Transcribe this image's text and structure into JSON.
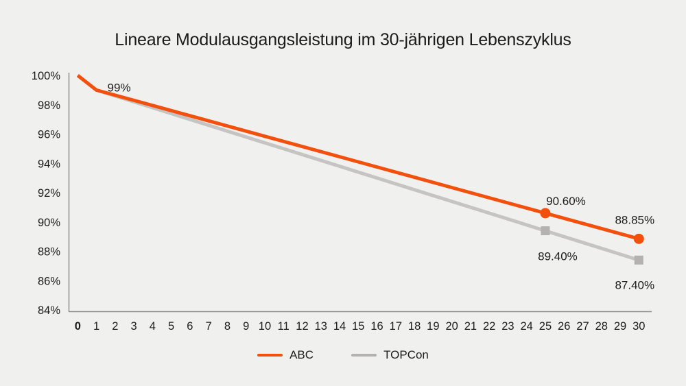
{
  "page": {
    "background": "#f0f0ee",
    "text_color": "#1c1c1c",
    "axis_color": "#8e8e8c"
  },
  "chart_data": {
    "type": "line",
    "title": "Lineare Modulausgangsleistung im 30-jährigen Lebenszyklus",
    "xlabel": "",
    "ylabel": "",
    "xlim": [
      0,
      30
    ],
    "ylim": [
      84,
      100
    ],
    "grid": false,
    "legend_position": "bottom",
    "x_ticks": [
      0,
      1,
      2,
      3,
      4,
      5,
      6,
      7,
      8,
      9,
      10,
      11,
      12,
      13,
      14,
      15,
      16,
      17,
      18,
      19,
      20,
      21,
      22,
      23,
      24,
      25,
      26,
      27,
      28,
      29,
      30
    ],
    "x_ticks_bold": [
      0
    ],
    "y_ticks": [
      100,
      98,
      96,
      94,
      92,
      90,
      88,
      86,
      84
    ],
    "y_tick_suffix": "%",
    "series": [
      {
        "name": "ABC",
        "color": "#f3500e",
        "marker_color": "#f3500e",
        "marker": "circle",
        "x": [
          0,
          1,
          25,
          30
        ],
        "values": [
          100,
          99,
          90.6,
          88.85
        ],
        "marker_x": [
          25,
          30
        ],
        "labels": [
          {
            "x": 1,
            "value": 99,
            "text": "99%",
            "dx": 33,
            "dy": 2
          },
          {
            "x": 25,
            "value": 90.6,
            "text": "90.60%",
            "dx": 30,
            "dy": -12
          },
          {
            "x": 30,
            "value": 88.85,
            "text": "88.85%",
            "dx": -6,
            "dy": -22
          }
        ]
      },
      {
        "name": "TOPCon",
        "color": "#c5c4c2",
        "marker_color": "#b3b2b0",
        "marker": "square",
        "x": [
          0,
          1,
          25,
          30
        ],
        "values": [
          100,
          99,
          89.4,
          87.4
        ],
        "marker_x": [
          25,
          30
        ],
        "labels": [
          {
            "x": 25,
            "value": 89.4,
            "text": "89.40%",
            "dx": 18,
            "dy": 43
          },
          {
            "x": 30,
            "value": 87.4,
            "text": "87.40%",
            "dx": -6,
            "dy": 42
          }
        ]
      }
    ]
  }
}
